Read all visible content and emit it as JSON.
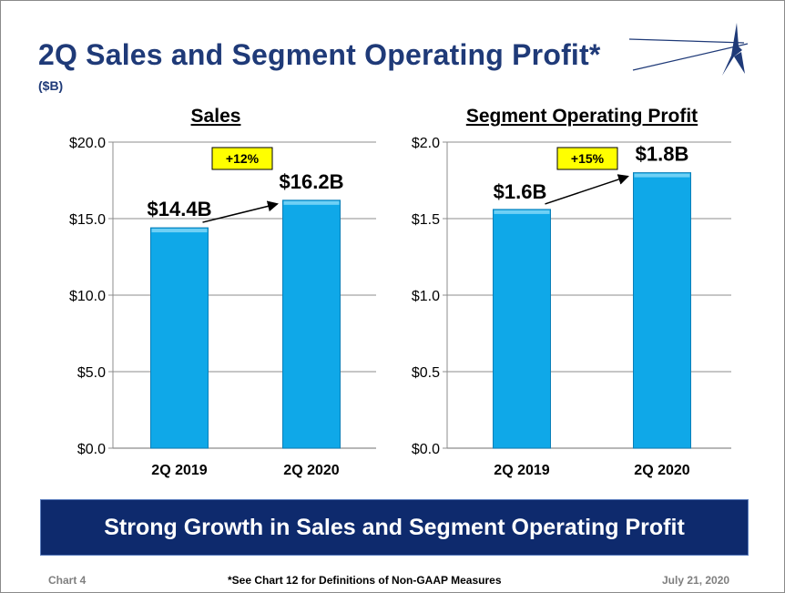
{
  "title": "2Q Sales and Segment Operating Profit*",
  "subtitle": "($B)",
  "banner": "Strong Growth in Sales and Segment Operating Profit",
  "footer": {
    "left": "Chart 4",
    "center": "*See Chart 12 for Definitions of Non-GAAP Measures",
    "right": "July 21, 2020"
  },
  "colors": {
    "title": "#1f3a78",
    "bar": "#0fa8e8",
    "bar_edge": "#0b7fb8",
    "growth_box": "#ffff00",
    "banner": "#0e2a6d"
  },
  "logo": {
    "icon": "star-logo-icon"
  },
  "chart_data": [
    {
      "type": "bar",
      "title": "Sales",
      "categories": [
        "2Q 2019",
        "2Q 2020"
      ],
      "values": [
        14.4,
        16.2
      ],
      "data_labels": [
        "$14.4B",
        "$16.2B"
      ],
      "ylim": [
        0,
        20
      ],
      "yticks": [
        0,
        5,
        10,
        15,
        20
      ],
      "ytick_labels": [
        "$0.0",
        "$5.0",
        "$10.0",
        "$15.0",
        "$20.0"
      ],
      "growth_label": "+12%",
      "grid": true
    },
    {
      "type": "bar",
      "title": "Segment Operating Profit",
      "categories": [
        "2Q 2019",
        "2Q 2020"
      ],
      "values": [
        1.56,
        1.8
      ],
      "data_labels": [
        "$1.6B",
        "$1.8B"
      ],
      "ylim": [
        0,
        2
      ],
      "yticks": [
        0,
        0.5,
        1,
        1.5,
        2
      ],
      "ytick_labels": [
        "$0.0",
        "$0.5",
        "$1.0",
        "$1.5",
        "$2.0"
      ],
      "growth_label": "+15%",
      "grid": true
    }
  ]
}
